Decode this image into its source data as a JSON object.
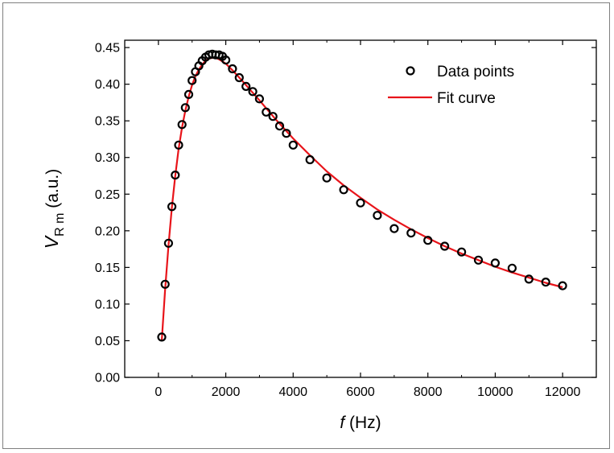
{
  "chart_data": {
    "type": "scatter",
    "xlabel": {
      "var": "f",
      "unit": " (Hz)"
    },
    "ylabel": {
      "var": "V",
      "sub": "R m",
      "unit": " (a.u.)"
    },
    "xlim": [
      -1000,
      13000
    ],
    "ylim": [
      0.0,
      0.46
    ],
    "x_ticks": [
      0,
      2000,
      4000,
      6000,
      8000,
      10000,
      12000
    ],
    "x_tick_labels": [
      "0",
      "2000",
      "4000",
      "6000",
      "8000",
      "10000",
      "12000"
    ],
    "y_ticks": [
      0.0,
      0.05,
      0.1,
      0.15,
      0.2,
      0.25,
      0.3,
      0.35,
      0.4,
      0.45
    ],
    "y_tick_labels": [
      "0.00",
      "0.05",
      "0.10",
      "0.15",
      "0.20",
      "0.25",
      "0.30",
      "0.35",
      "0.40",
      "0.45"
    ],
    "grid": false,
    "legend_position": "top-right",
    "series": [
      {
        "name": "Data points",
        "kind": "scatter",
        "color": "#000000",
        "points": [
          [
            100,
            0.055
          ],
          [
            200,
            0.127
          ],
          [
            300,
            0.183
          ],
          [
            400,
            0.233
          ],
          [
            500,
            0.276
          ],
          [
            600,
            0.317
          ],
          [
            700,
            0.345
          ],
          [
            800,
            0.368
          ],
          [
            900,
            0.386
          ],
          [
            1000,
            0.405
          ],
          [
            1100,
            0.417
          ],
          [
            1200,
            0.425
          ],
          [
            1300,
            0.432
          ],
          [
            1400,
            0.437
          ],
          [
            1500,
            0.44
          ],
          [
            1600,
            0.441
          ],
          [
            1700,
            0.44
          ],
          [
            1800,
            0.44
          ],
          [
            1900,
            0.438
          ],
          [
            2000,
            0.433
          ],
          [
            2200,
            0.421
          ],
          [
            2400,
            0.409
          ],
          [
            2600,
            0.397
          ],
          [
            2800,
            0.39
          ],
          [
            3000,
            0.38
          ],
          [
            3200,
            0.362
          ],
          [
            3400,
            0.356
          ],
          [
            3600,
            0.343
          ],
          [
            3800,
            0.333
          ],
          [
            4000,
            0.317
          ],
          [
            4500,
            0.297
          ],
          [
            5000,
            0.272
          ],
          [
            5500,
            0.256
          ],
          [
            6000,
            0.238
          ],
          [
            6500,
            0.221
          ],
          [
            7000,
            0.203
          ],
          [
            7500,
            0.197
          ],
          [
            8000,
            0.187
          ],
          [
            8500,
            0.179
          ],
          [
            9000,
            0.171
          ],
          [
            9500,
            0.16
          ],
          [
            10000,
            0.156
          ],
          [
            10500,
            0.149
          ],
          [
            11000,
            0.134
          ],
          [
            11500,
            0.13
          ],
          [
            12000,
            0.125
          ]
        ]
      },
      {
        "name": "Fit curve",
        "kind": "line",
        "color": "#e8141a",
        "points": [
          [
            100,
            0.05
          ],
          [
            150,
            0.085
          ],
          [
            200,
            0.12
          ],
          [
            250,
            0.15
          ],
          [
            300,
            0.18
          ],
          [
            400,
            0.232
          ],
          [
            500,
            0.275
          ],
          [
            600,
            0.312
          ],
          [
            700,
            0.341
          ],
          [
            800,
            0.364
          ],
          [
            900,
            0.383
          ],
          [
            1000,
            0.399
          ],
          [
            1100,
            0.411
          ],
          [
            1200,
            0.42
          ],
          [
            1300,
            0.427
          ],
          [
            1400,
            0.432
          ],
          [
            1500,
            0.435
          ],
          [
            1600,
            0.436
          ],
          [
            1700,
            0.436
          ],
          [
            1800,
            0.434
          ],
          [
            2000,
            0.428
          ],
          [
            2200,
            0.419
          ],
          [
            2500,
            0.404
          ],
          [
            3000,
            0.378
          ],
          [
            3500,
            0.351
          ],
          [
            4000,
            0.326
          ],
          [
            4500,
            0.303
          ],
          [
            5000,
            0.281
          ],
          [
            5500,
            0.262
          ],
          [
            6000,
            0.245
          ],
          [
            6500,
            0.229
          ],
          [
            7000,
            0.215
          ],
          [
            7500,
            0.202
          ],
          [
            8000,
            0.19
          ],
          [
            8500,
            0.179
          ],
          [
            9000,
            0.169
          ],
          [
            9500,
            0.16
          ],
          [
            10000,
            0.151
          ],
          [
            10500,
            0.143
          ],
          [
            11000,
            0.136
          ],
          [
            11500,
            0.129
          ],
          [
            12000,
            0.123
          ]
        ]
      }
    ]
  }
}
